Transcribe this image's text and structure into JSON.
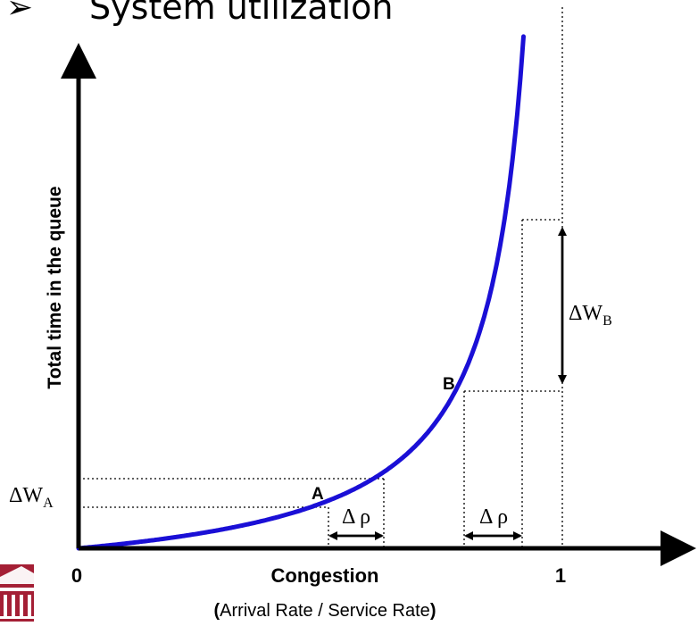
{
  "heading": {
    "bullet": "➢",
    "text": "System utilization"
  },
  "axes": {
    "y_label": "Total time in the queue",
    "x_label_main": "Congestion",
    "x_label_paren_open": "(",
    "x_label_sub": "Arrival Rate / Service Rate",
    "x_label_paren_close": ")",
    "x_origin": "0",
    "x_max": "1"
  },
  "points": {
    "a": "A",
    "b": "B"
  },
  "deltas": {
    "w_a_prefix": "ΔW",
    "w_a_sub": "A",
    "w_b_prefix": "ΔW",
    "w_b_sub": "B",
    "rho_left": "Δ ρ",
    "rho_right": "Δ ρ"
  },
  "colors": {
    "curve": "#1a0fd6",
    "axis": "#000000",
    "logo": "#a41f35"
  },
  "icons": {
    "logo": "university-logo-icon",
    "bullet": "arrow-bullet-icon"
  }
}
